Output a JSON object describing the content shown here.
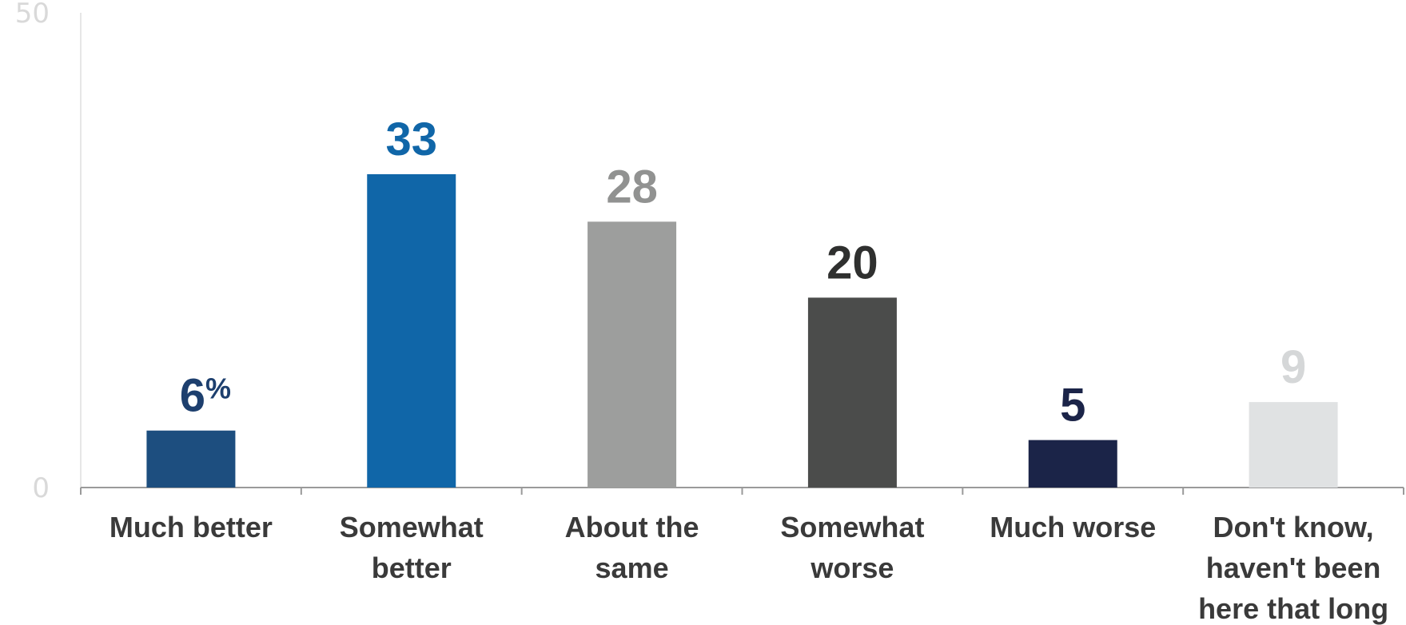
{
  "chart_data": {
    "type": "bar",
    "categories": [
      [
        "Much better"
      ],
      [
        "Somewhat",
        "better"
      ],
      [
        "About the",
        "same"
      ],
      [
        "Somewhat",
        "worse"
      ],
      [
        "Much worse"
      ],
      [
        "Don't know,",
        "haven't been",
        "here that long"
      ]
    ],
    "values": [
      6,
      33,
      28,
      20,
      5,
      9
    ],
    "value_labels": [
      "6",
      "33",
      "28",
      "20",
      "5",
      "9"
    ],
    "value_suffix": "%",
    "bar_colors": [
      "#1d4e7f",
      "#1066a8",
      "#9d9e9d",
      "#4b4c4b",
      "#1b2448",
      "#e0e2e3"
    ],
    "label_colors": [
      "#1d3f6e",
      "#1066a8",
      "#919291",
      "#2f302f",
      "#1b2448",
      "#d5d7d8"
    ],
    "ylim": [
      0,
      50
    ],
    "yticks": [
      "0",
      "50"
    ],
    "grid": false,
    "axis_color": "#9a9a9a"
  }
}
